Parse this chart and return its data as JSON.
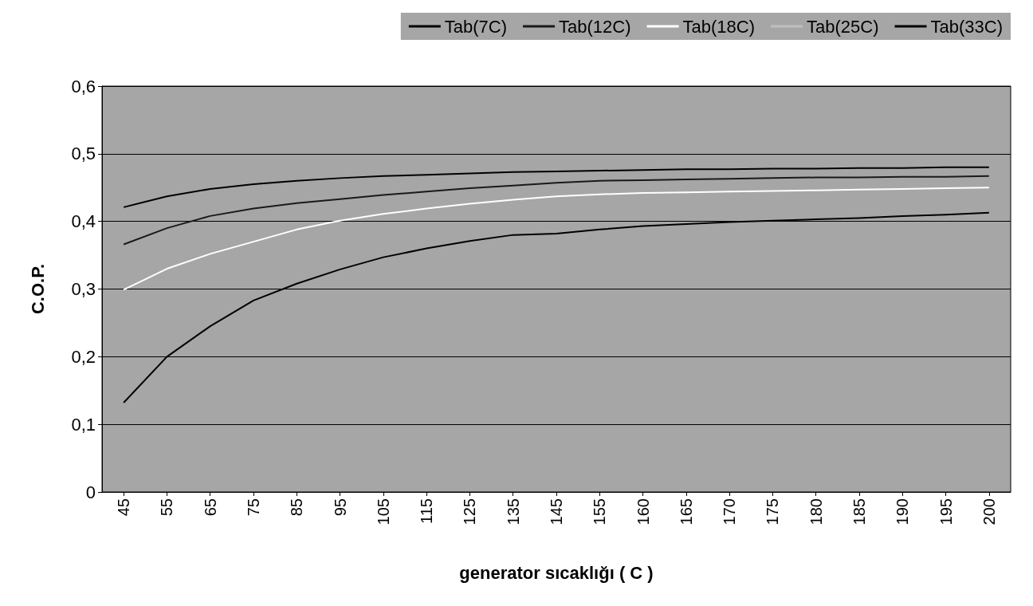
{
  "chart_data": {
    "type": "line",
    "xlabel": "generator sıcaklığı ( C )",
    "ylabel": "C.O.P.",
    "categories": [
      "45",
      "55",
      "65",
      "75",
      "85",
      "95",
      "105",
      "115",
      "125",
      "135",
      "145",
      "155",
      "160",
      "165",
      "170",
      "175",
      "180",
      "185",
      "190",
      "195",
      "200"
    ],
    "series": [
      {
        "name": "Tab(7C)",
        "color": "#000000",
        "values": [
          0.421,
          0.437,
          0.448,
          0.455,
          0.46,
          0.464,
          0.467,
          0.469,
          0.471,
          0.473,
          0.474,
          0.475,
          0.476,
          0.477,
          0.477,
          0.478,
          0.478,
          0.479,
          0.479,
          0.48,
          0.48
        ]
      },
      {
        "name": "Tab(12C)",
        "color": "#1a1a1a",
        "values": [
          0.366,
          0.39,
          0.408,
          0.419,
          0.427,
          0.433,
          0.439,
          0.444,
          0.449,
          0.453,
          0.457,
          0.46,
          0.461,
          0.462,
          0.463,
          0.464,
          0.465,
          0.465,
          0.466,
          0.466,
          0.467
        ]
      },
      {
        "name": "Tab(18C)",
        "color": "#ffffff",
        "values": [
          0.299,
          0.33,
          0.352,
          0.37,
          0.388,
          0.401,
          0.411,
          0.419,
          0.426,
          0.432,
          0.437,
          0.44,
          0.442,
          0.443,
          0.444,
          0.445,
          0.446,
          0.447,
          0.448,
          0.449,
          0.45
        ]
      },
      {
        "name": "Tab(25C)",
        "color": "#c0c0c0",
        "values": [
          null,
          null,
          null,
          null,
          null,
          null,
          null,
          null,
          null,
          null,
          null,
          null,
          null,
          null,
          null,
          null,
          null,
          null,
          null,
          null,
          null
        ]
      },
      {
        "name": "Tab(33C)",
        "color": "#000000",
        "values": [
          0.132,
          0.2,
          0.245,
          0.283,
          0.308,
          0.329,
          0.347,
          0.36,
          0.371,
          0.38,
          0.382,
          0.388,
          0.393,
          0.396,
          0.399,
          0.401,
          0.403,
          0.405,
          0.408,
          0.41,
          0.413
        ]
      }
    ],
    "ylim": [
      0,
      0.6
    ],
    "yticks": [
      0,
      {
        "value": 0.1,
        "label": "0,1"
      },
      {
        "value": 0.2,
        "label": "0,2"
      },
      {
        "value": 0.3,
        "label": "0,3"
      },
      {
        "value": 0.4,
        "label": "0,4"
      },
      {
        "value": 0.5,
        "label": "0,5"
      },
      {
        "value": 0.6,
        "label": "0,6"
      }
    ],
    "grid": "y",
    "legend": "top right",
    "marker": "none",
    "line_style": "solid"
  }
}
